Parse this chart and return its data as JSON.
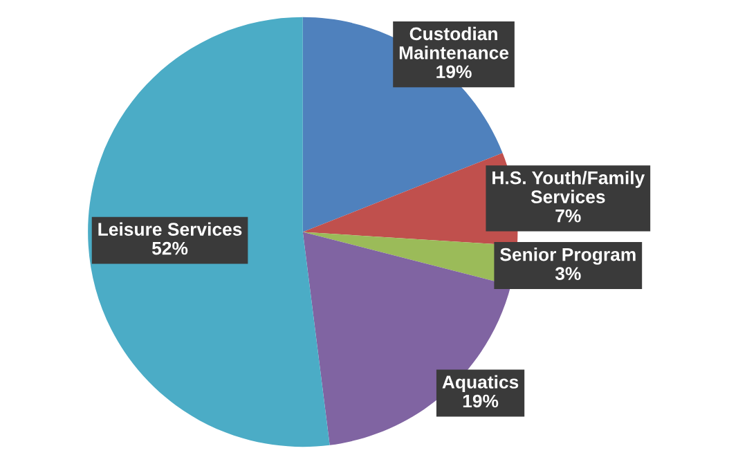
{
  "chart_data": {
    "type": "pie",
    "categories": [
      "Custodian\nMaintenance",
      "H.S. Youth/Family\nServices",
      "Senior Program",
      "Aquatics",
      "Leisure Services"
    ],
    "values": [
      19,
      7,
      3,
      19,
      52
    ],
    "value_labels": [
      "19%",
      "7%",
      "3%",
      "19%",
      "52%"
    ],
    "colors": [
      "#4f81bd",
      "#c0504d",
      "#9bbb59",
      "#8064a2",
      "#4bacc6"
    ],
    "legend": false
  }
}
